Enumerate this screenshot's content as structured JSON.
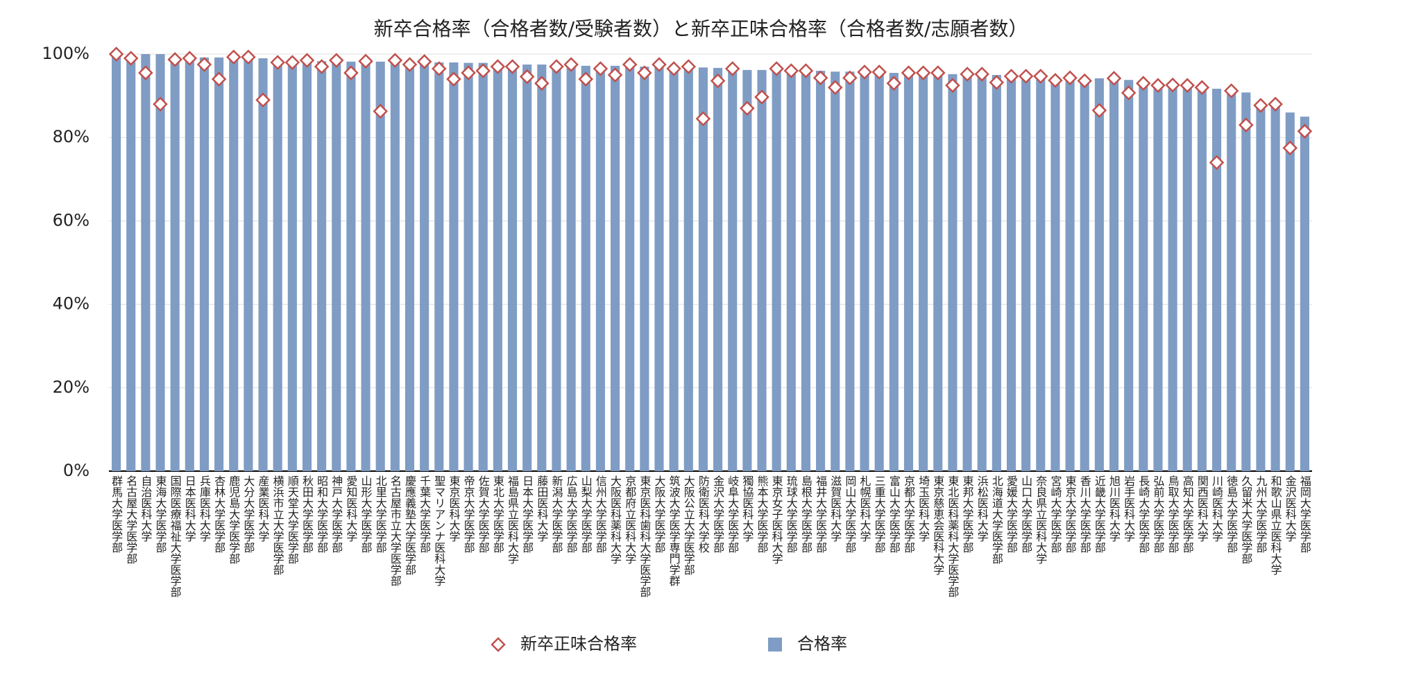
{
  "chart_data": {
    "type": "bar",
    "title": "新卒合格率（合格者数/受験者数）と新卒正味合格率（合格者数/志願者数）",
    "categories": [
      "群馬大学医学部",
      "名古屋大学医学部",
      "自治医科大学",
      "東海大学医学部",
      "国際医療福祉大学医学部",
      "日本医科大学",
      "兵庫医科大学",
      "杏林大学医学部",
      "鹿児島大学医学部",
      "大分大学医学部",
      "産業医科大学",
      "横浜市立大学医学部",
      "順天堂大学医学部",
      "秋田大学医学部",
      "昭和大学医学部",
      "神戸大学医学部",
      "愛知医科大学",
      "山形大学医学部",
      "北里大学医学部",
      "名古屋市立大学医学部",
      "慶應義塾大学医学部",
      "千葉大学医学部",
      "聖マリアンナ医科大学",
      "東京医科大学",
      "帝京大学医学部",
      "佐賀大学医学部",
      "東北大学医学部",
      "福島県立医科大学",
      "日本大学医学部",
      "藤田医科大学",
      "新潟大学医学部",
      "広島大学医学部",
      "山梨大学医学部",
      "信州大学医学部",
      "大阪医科薬科大学",
      "京都府立医科大学",
      "東京医科歯科大学医学部",
      "大阪大学医学部",
      "筑波大学医学専門学群",
      "大阪公立大学医学部",
      "防衛医科大学校",
      "金沢大学医学部",
      "岐阜大学医学部",
      "獨協医科大学",
      "熊本大学医学部",
      "東京女子医科大学",
      "琉球大学医学部",
      "島根大学医学部",
      "福井大学医学部",
      "滋賀医科大学",
      "岡山大学医学部",
      "札幌医科大学",
      "三重大学医学部",
      "富山大学医学部",
      "京都大学医学部",
      "埼玉医科大学",
      "東京慈恵会医科大学",
      "東北医科薬科大学医学部",
      "東邦大学医学部",
      "浜松医科大学",
      "北海道大学医学部",
      "愛媛大学医学部",
      "山口大学医学部",
      "奈良県立医科大学",
      "宮崎大学医学部",
      "東京大学医学部",
      "香川大学医学部",
      "近畿大学医学部",
      "旭川医科大学",
      "岩手医科大学",
      "長崎大学医学部",
      "弘前大学医学部",
      "鳥取大学医学部",
      "高知大学医学部",
      "関西医科大学",
      "川崎医科大学",
      "徳島大学医学部",
      "久留米大学医学部",
      "九州大学医学部",
      "和歌山県立医科大学",
      "金沢医科大学",
      "福岡大学医学部"
    ],
    "series": [
      {
        "name": "新卒正味合格率",
        "type": "marker",
        "color": "#c0504d",
        "values": [
          100,
          99,
          95.5,
          88,
          98.7,
          99,
          97.5,
          94,
          99.3,
          99.3,
          89,
          98,
          98,
          98.5,
          97,
          98.5,
          95.5,
          98.3,
          86.3,
          98.5,
          97.5,
          98.2,
          96.5,
          94,
          95.5,
          96,
          97,
          97,
          94.6,
          93,
          97,
          97.5,
          94,
          96.5,
          95,
          97.5,
          95.5,
          97.5,
          96.5,
          97,
          84.5,
          93.6,
          96.5,
          87,
          89.7,
          96.5,
          96,
          96,
          94.3,
          92,
          94.3,
          95.7,
          95.7,
          93,
          95.5,
          95.5,
          95.5,
          92.5,
          95.2,
          95.2,
          93.2,
          94.7,
          94.7,
          94.7,
          93.7,
          94.3,
          93.6,
          86.5,
          94.2,
          90.7,
          93,
          92.5,
          92.6,
          92.5,
          92,
          74,
          91.2,
          83,
          87.7,
          88,
          77.5,
          81.5
        ]
      },
      {
        "name": "合格率",
        "type": "bar",
        "color": "#7f9cc4",
        "values": [
          100,
          99.5,
          100,
          100,
          99,
          99,
          99.2,
          99.2,
          99,
          99,
          99,
          98.5,
          98.4,
          98.4,
          98.3,
          98.3,
          98.2,
          98.2,
          98.2,
          98,
          98,
          98,
          98,
          98,
          97.9,
          97.9,
          97.7,
          97.7,
          97.5,
          97.5,
          97.3,
          97.3,
          97.2,
          97.2,
          97.2,
          97.2,
          97,
          97,
          97,
          97,
          96.8,
          96.7,
          96.5,
          96.2,
          96.2,
          96.2,
          96,
          96,
          96,
          95.8,
          95.8,
          95.7,
          95.6,
          95.5,
          95.5,
          95.5,
          95.3,
          95.2,
          95,
          95,
          95,
          95,
          94.8,
          94.7,
          94.5,
          94.4,
          94.3,
          94.2,
          94.1,
          93.8,
          93,
          93,
          92.8,
          92.6,
          92,
          91.7,
          91.4,
          90.8,
          88,
          88,
          86,
          85
        ]
      }
    ],
    "ylim": [
      0,
      100
    ],
    "yticks": [
      {
        "value": 0,
        "label": "0%"
      },
      {
        "value": 20,
        "label": "20%"
      },
      {
        "value": 40,
        "label": "40%"
      },
      {
        "value": 60,
        "label": "60%"
      },
      {
        "value": 80,
        "label": "80%"
      },
      {
        "value": 100,
        "label": "100%"
      }
    ],
    "grid": true,
    "legend": "bottom"
  }
}
